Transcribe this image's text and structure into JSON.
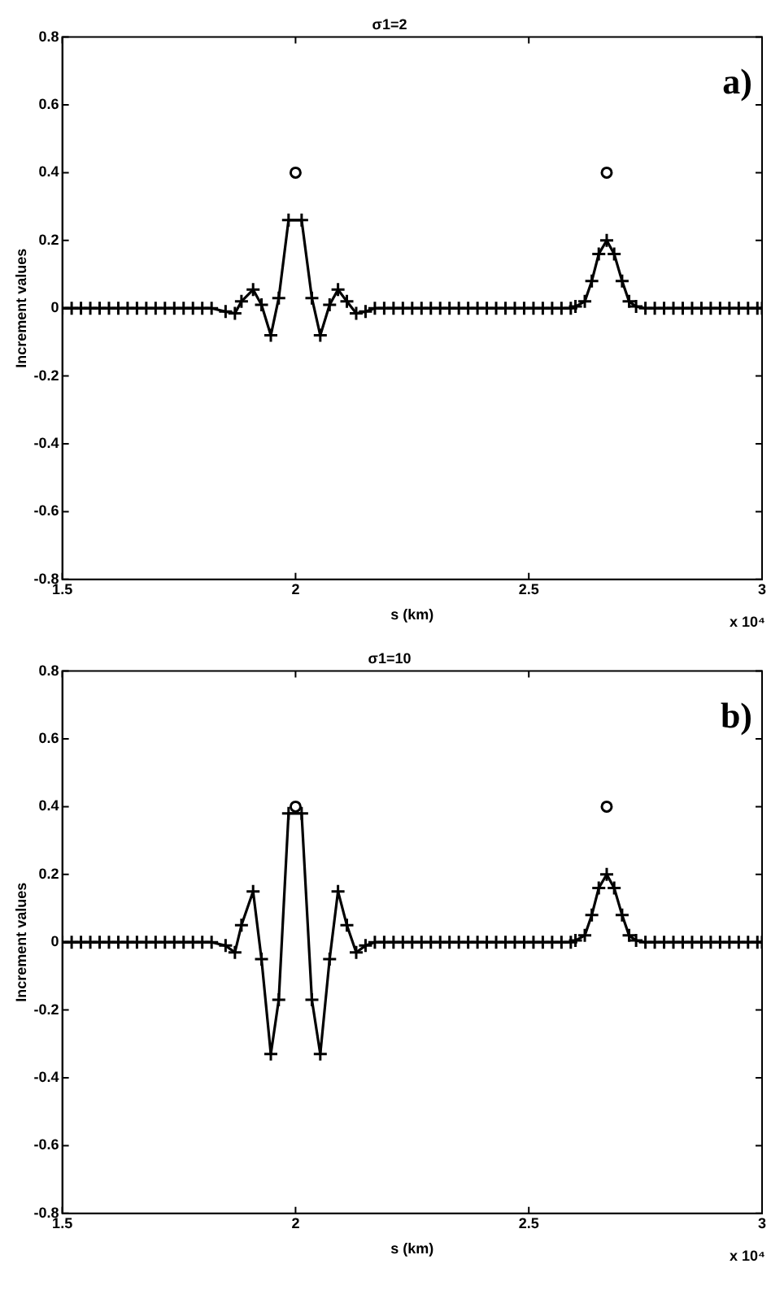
{
  "chart_data": [
    {
      "type": "line",
      "title": "σ1=2",
      "xlabel": "s (km)",
      "ylabel": "Increment values",
      "annotations": [
        "a)",
        "x 10⁴"
      ],
      "xlim": [
        1.5,
        3
      ],
      "xticks": [
        1.5,
        2,
        2.5,
        3
      ],
      "ylim": [
        -0.8,
        0.8
      ],
      "yticks": [
        -0.8,
        -0.6,
        -0.4,
        -0.2,
        0,
        0.2,
        0.4,
        0.6,
        0.8
      ],
      "grid": false,
      "legend": false,
      "series": [
        {
          "type": "line",
          "marker": "cross",
          "color": "#000000",
          "x": [
            1.5,
            1.52,
            1.54,
            1.56,
            1.58,
            1.6,
            1.62,
            1.64,
            1.66,
            1.68,
            1.7,
            1.72,
            1.74,
            1.76,
            1.78,
            1.8,
            1.82,
            1.85,
            1.87,
            1.884,
            1.909,
            1.927,
            1.947,
            1.964,
            1.985,
            2.013,
            2.035,
            2.053,
            2.073,
            2.091,
            2.11,
            2.13,
            2.15,
            2.17,
            2.19,
            2.21,
            2.23,
            2.25,
            2.27,
            2.29,
            2.31,
            2.33,
            2.35,
            2.37,
            2.39,
            2.41,
            2.43,
            2.45,
            2.47,
            2.49,
            2.51,
            2.53,
            2.55,
            2.57,
            2.59,
            2.6,
            2.62,
            2.635,
            2.65,
            2.667,
            2.683,
            2.7,
            2.715,
            2.73,
            2.75,
            2.77,
            2.79,
            2.81,
            2.83,
            2.85,
            2.87,
            2.89,
            2.91,
            2.93,
            2.95,
            2.97,
            2.99,
            3
          ],
          "values": [
            0,
            0,
            0,
            0,
            0,
            0,
            0,
            0,
            0,
            0,
            0,
            0,
            0,
            0,
            0,
            0,
            0,
            -0.01,
            -0.015,
            0.02,
            0.055,
            0.01,
            -0.08,
            0.03,
            0.26,
            0.26,
            0.03,
            -0.08,
            0.01,
            0.055,
            0.02,
            -0.015,
            -0.01,
            0,
            0,
            0,
            0,
            0,
            0,
            0,
            0,
            0,
            0,
            0,
            0,
            0,
            0,
            0,
            0,
            0,
            0,
            0,
            0,
            0,
            0,
            0.005,
            0.02,
            0.08,
            0.16,
            0.2,
            0.16,
            0.08,
            0.02,
            0.005,
            0,
            0,
            0,
            0,
            0,
            0,
            0,
            0,
            0,
            0,
            0,
            0,
            0,
            0
          ]
        },
        {
          "type": "scatter",
          "marker": "circle",
          "color": "#000000",
          "x": [
            2,
            2.667
          ],
          "values": [
            0.4,
            0.4
          ]
        }
      ]
    },
    {
      "type": "line",
      "title": "σ1=10",
      "xlabel": "s (km)",
      "ylabel": "Increment values",
      "annotations": [
        "b)",
        "x 10⁴"
      ],
      "xlim": [
        1.5,
        3
      ],
      "xticks": [
        1.5,
        2,
        2.5,
        3
      ],
      "ylim": [
        -0.8,
        0.8
      ],
      "yticks": [
        -0.8,
        -0.6,
        -0.4,
        -0.2,
        0,
        0.2,
        0.4,
        0.6,
        0.8
      ],
      "grid": false,
      "legend": false,
      "series": [
        {
          "type": "line",
          "marker": "cross",
          "color": "#000000",
          "x": [
            1.5,
            1.52,
            1.54,
            1.56,
            1.58,
            1.6,
            1.62,
            1.64,
            1.66,
            1.68,
            1.7,
            1.72,
            1.74,
            1.76,
            1.78,
            1.8,
            1.82,
            1.85,
            1.87,
            1.884,
            1.909,
            1.927,
            1.947,
            1.964,
            1.985,
            2.013,
            2.035,
            2.053,
            2.073,
            2.091,
            2.11,
            2.13,
            2.15,
            2.17,
            2.19,
            2.21,
            2.23,
            2.25,
            2.27,
            2.29,
            2.31,
            2.33,
            2.35,
            2.37,
            2.39,
            2.41,
            2.43,
            2.45,
            2.47,
            2.49,
            2.51,
            2.53,
            2.55,
            2.57,
            2.59,
            2.6,
            2.62,
            2.635,
            2.65,
            2.667,
            2.683,
            2.7,
            2.715,
            2.73,
            2.75,
            2.77,
            2.79,
            2.81,
            2.83,
            2.85,
            2.87,
            2.89,
            2.91,
            2.93,
            2.95,
            2.97,
            2.99,
            3
          ],
          "values": [
            0,
            0,
            0,
            0,
            0,
            0,
            0,
            0,
            0,
            0,
            0,
            0,
            0,
            0,
            0,
            0,
            0,
            -0.01,
            -0.03,
            0.05,
            0.15,
            -0.05,
            -0.33,
            -0.17,
            0.38,
            0.38,
            -0.17,
            -0.33,
            -0.05,
            0.15,
            0.05,
            -0.03,
            -0.01,
            0,
            0,
            0,
            0,
            0,
            0,
            0,
            0,
            0,
            0,
            0,
            0,
            0,
            0,
            0,
            0,
            0,
            0,
            0,
            0,
            0,
            0,
            0.005,
            0.02,
            0.08,
            0.16,
            0.2,
            0.16,
            0.08,
            0.02,
            0.005,
            0,
            0,
            0,
            0,
            0,
            0,
            0,
            0,
            0,
            0,
            0,
            0,
            0,
            0
          ]
        },
        {
          "type": "scatter",
          "marker": "circle",
          "color": "#000000",
          "x": [
            2,
            2.667
          ],
          "values": [
            0.4,
            0.4
          ]
        }
      ]
    }
  ]
}
